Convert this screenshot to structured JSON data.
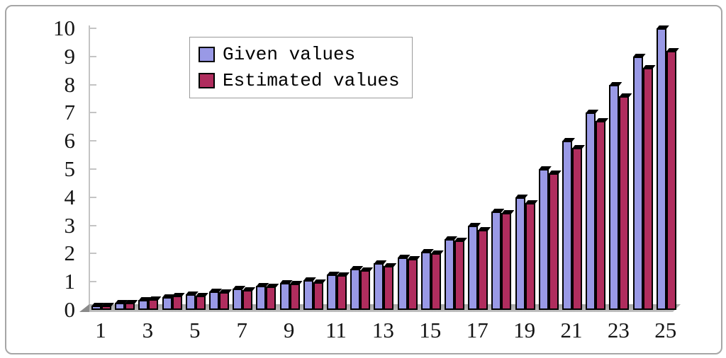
{
  "chart_data": {
    "type": "bar",
    "title": "",
    "categories": [
      1,
      2,
      3,
      4,
      5,
      6,
      7,
      8,
      9,
      10,
      11,
      12,
      13,
      14,
      15,
      16,
      17,
      18,
      19,
      20,
      21,
      22,
      23,
      24,
      25
    ],
    "x_tick_labels": [
      "1",
      "3",
      "5",
      "7",
      "9",
      "11",
      "13",
      "15",
      "17",
      "19",
      "21",
      "23",
      "25"
    ],
    "series": [
      {
        "name": "Given values",
        "color": "#9999e6",
        "values": [
          0.15,
          0.25,
          0.35,
          0.45,
          0.55,
          0.65,
          0.75,
          0.85,
          0.95,
          1.05,
          1.25,
          1.45,
          1.65,
          1.85,
          2.05,
          2.5,
          3.0,
          3.5,
          4.0,
          5.0,
          6.0,
          7.0,
          8.0,
          9.0,
          10.0
        ]
      },
      {
        "name": "Estimated values",
        "color": "#b02d5e",
        "values": [
          0.15,
          0.25,
          0.37,
          0.5,
          0.5,
          0.62,
          0.7,
          0.82,
          0.92,
          0.98,
          1.22,
          1.4,
          1.55,
          1.8,
          2.0,
          2.45,
          2.85,
          3.45,
          3.8,
          4.85,
          5.75,
          6.7,
          7.6,
          8.6,
          9.2
        ]
      }
    ],
    "ylim": [
      0,
      10
    ],
    "yticks": [
      0,
      1,
      2,
      3,
      4,
      5,
      6,
      7,
      8,
      9,
      10
    ],
    "grid": false,
    "legend_position": "top-left-inside",
    "bar_outline_color": "#000000"
  },
  "legend": {
    "items": [
      {
        "label": "Given values",
        "color": "#9999e6"
      },
      {
        "label": "Estimated values",
        "color": "#b02d5e"
      }
    ]
  },
  "colors": {
    "axis": "#c4c4c4",
    "floor": "#b3b3b3",
    "frame_border": "#a6a6a6",
    "text": "#141414",
    "background": "#ffffff"
  }
}
